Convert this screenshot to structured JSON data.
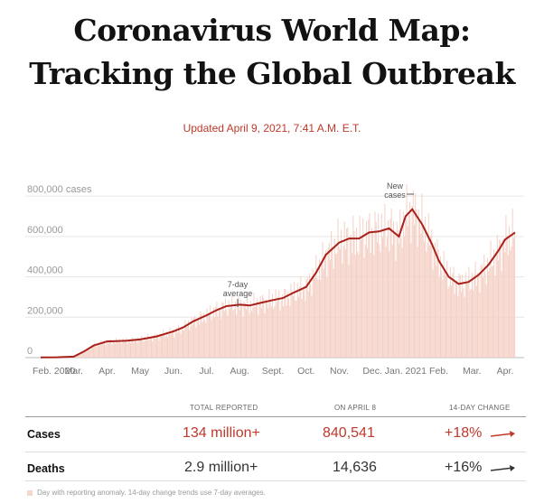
{
  "header": {
    "title_line1": "Coronavirus World Map:",
    "title_line2": "Tracking the Global Outbreak",
    "updated": "Updated April 9, 2021, 7:41 A.M. E.T."
  },
  "colors": {
    "accent": "#c0392b",
    "bar": "#f4cfc4",
    "line": "#a8201a"
  },
  "chart_data": {
    "type": "bar",
    "title": "",
    "xlabel": "",
    "ylabel": "",
    "y_tick_labels": [
      "800,000 cases",
      "600,000",
      "400,000",
      "200,000",
      "0"
    ],
    "y_ticks": [
      800000,
      600000,
      400000,
      200000,
      0
    ],
    "ylim": [
      0,
      850000
    ],
    "x_tick_labels": [
      "Feb. 2020",
      "Mar.",
      "Apr.",
      "May",
      "Jun.",
      "Jul.",
      "Aug.",
      "Sept.",
      "Oct.",
      "Nov.",
      "Dec.",
      "Jan. 2021",
      "Feb.",
      "Mar.",
      "Apr."
    ],
    "x_tick_months": [
      0,
      1,
      2,
      3,
      4,
      5,
      6,
      7,
      8,
      9,
      10,
      11,
      12,
      13,
      14
    ],
    "xlim_months": [
      0,
      14.3
    ],
    "annotations": [
      {
        "text_lines": [
          "New",
          "cases"
        ],
        "target": "bars"
      },
      {
        "text_lines": [
          "7-day",
          "average"
        ],
        "target": "line"
      }
    ],
    "series": [
      {
        "name": "7-day average",
        "x_months": [
          0,
          0.5,
          1,
          1.3,
          1.6,
          2,
          2.3,
          2.6,
          3,
          3.5,
          4,
          4.3,
          4.6,
          5,
          5.3,
          5.6,
          6,
          6.3,
          6.6,
          7,
          7.3,
          7.6,
          8,
          8.3,
          8.6,
          9,
          9.3,
          9.6,
          9.9,
          10.2,
          10.5,
          10.8,
          11,
          11.2,
          11.5,
          11.8,
          12,
          12.3,
          12.6,
          12.9,
          13.2,
          13.5,
          13.8,
          14,
          14.3
        ],
        "values": [
          1000,
          2000,
          5000,
          30000,
          60000,
          80000,
          82000,
          84000,
          90000,
          105000,
          130000,
          150000,
          180000,
          210000,
          235000,
          255000,
          262000,
          258000,
          270000,
          285000,
          295000,
          320000,
          350000,
          420000,
          510000,
          570000,
          590000,
          590000,
          620000,
          625000,
          640000,
          600000,
          700000,
          735000,
          660000,
          560000,
          480000,
          400000,
          365000,
          375000,
          410000,
          460000,
          530000,
          585000,
          620000
        ]
      }
    ]
  },
  "table": {
    "columns": [
      "TOTAL REPORTED",
      "ON APRIL 8",
      "14-DAY CHANGE"
    ],
    "rows": [
      {
        "label": "Cases",
        "total": "134 million+",
        "on_date": "840,541",
        "change": "+18%",
        "trend": "arrow-up-icon"
      },
      {
        "label": "Deaths",
        "total": "2.9 million+",
        "on_date": "14,636",
        "change": "+16%",
        "trend": "arrow-up-icon"
      }
    ],
    "footnote": "Day with reporting anomaly. 14-day change trends use 7-day averages."
  }
}
